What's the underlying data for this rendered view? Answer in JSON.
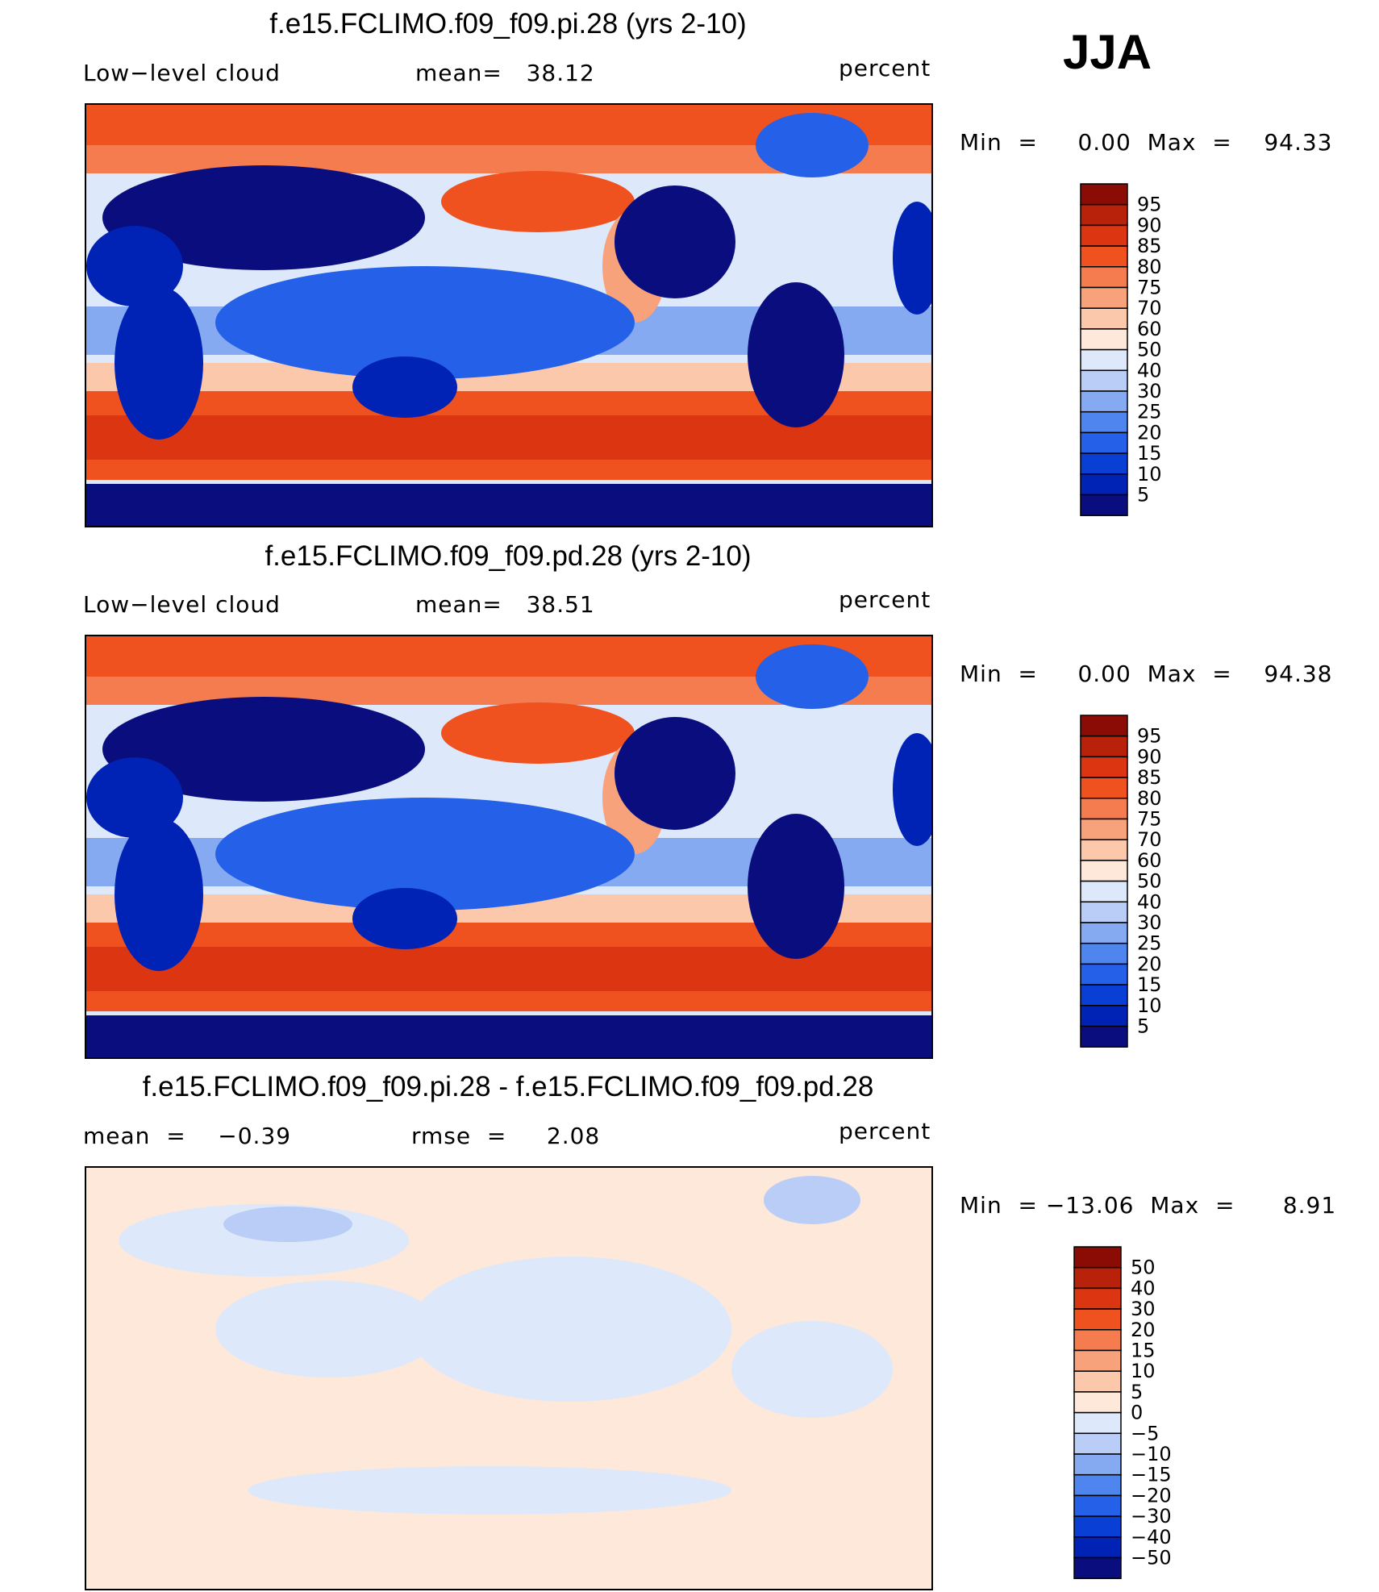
{
  "season": "JJA",
  "chart_data": [
    {
      "type": "heatmap",
      "title": "f.e15.FCLIMO.f09_f09.pi.28 (yrs 2-10)",
      "left_label": "Low−level cloud",
      "center_label": "mean=   38.12",
      "right_label": "percent",
      "minmax_label": "Min  =     0.00  Max  =    94.33",
      "stats": {
        "mean": 38.12,
        "min": 0.0,
        "max": 94.33
      },
      "colorbar_levels": [
        "95",
        "90",
        "85",
        "80",
        "75",
        "70",
        "60",
        "50",
        "40",
        "30",
        "25",
        "20",
        "15",
        "10",
        "5"
      ]
    },
    {
      "type": "heatmap",
      "title": "f.e15.FCLIMO.f09_f09.pd.28 (yrs 2-10)",
      "left_label": "Low−level cloud",
      "center_label": "mean=   38.51",
      "right_label": "percent",
      "minmax_label": "Min  =     0.00  Max  =    94.38",
      "stats": {
        "mean": 38.51,
        "min": 0.0,
        "max": 94.38
      },
      "colorbar_levels": [
        "95",
        "90",
        "85",
        "80",
        "75",
        "70",
        "60",
        "50",
        "40",
        "30",
        "25",
        "20",
        "15",
        "10",
        "5"
      ]
    },
    {
      "type": "heatmap",
      "title": "f.e15.FCLIMO.f09_f09.pi.28 - f.e15.FCLIMO.f09_f09.pd.28",
      "left_label": "mean  =    −0.39",
      "center_label": "rmse  =     2.08",
      "right_label": "percent",
      "minmax_label": "Min  = −13.06  Max  =      8.91",
      "stats": {
        "mean": -0.39,
        "rmse": 2.08,
        "min": -13.06,
        "max": 8.91
      },
      "colorbar_levels": [
        "50",
        "40",
        "30",
        "20",
        "15",
        "10",
        "5",
        "0",
        "−5",
        "−10",
        "−15",
        "−20",
        "−30",
        "−40",
        "−50"
      ]
    }
  ],
  "colors": {
    "cloud_scale": [
      "#0a0d7d",
      "#0022b5",
      "#0a3fd6",
      "#2460e8",
      "#4f85ee",
      "#86aaf2",
      "#b9cdf6",
      "#dde8fb",
      "#fde8da",
      "#fbc8ac",
      "#f8a27c",
      "#f47c4e",
      "#f0521f",
      "#db3611",
      "#b8220b",
      "#8a0c05"
    ],
    "diff_scale": [
      "#0a0d7d",
      "#0022b5",
      "#0a3fd6",
      "#2460e8",
      "#4f85ee",
      "#86aaf2",
      "#b9cdf6",
      "#dde8fb",
      "#fde8da",
      "#fbc8ac",
      "#f8a27c",
      "#f47c4e",
      "#f0521f",
      "#db3611",
      "#b8220b",
      "#8a0c05"
    ]
  }
}
